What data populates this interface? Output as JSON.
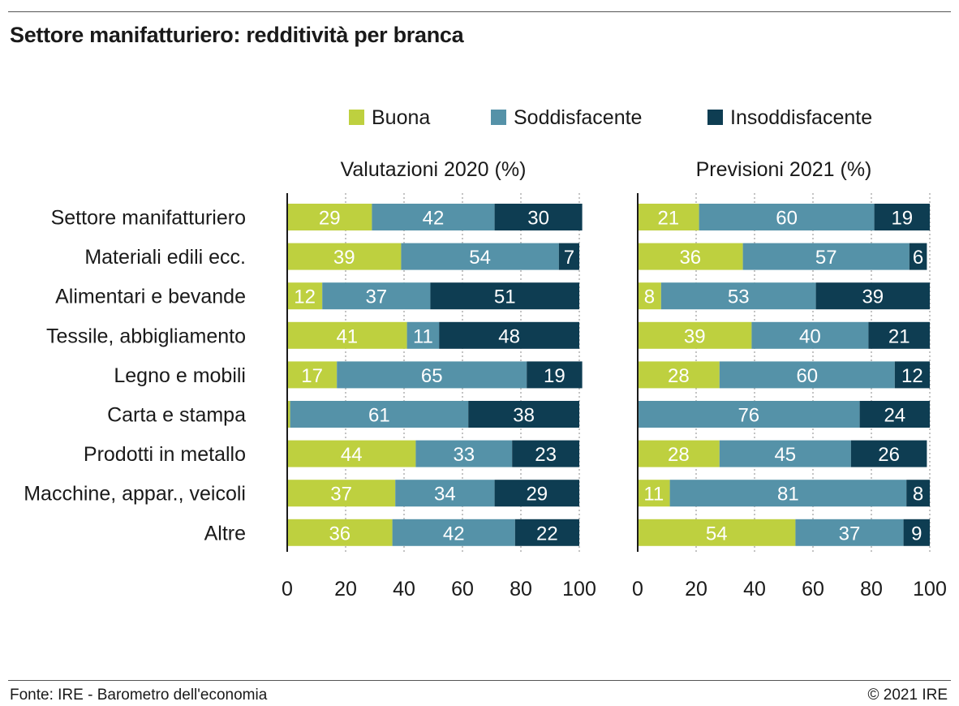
{
  "title": "Settore manifatturiero: redditività per branca",
  "source": "Fonte: IRE - Barometro dell'economia",
  "copyright": "© 2021 IRE",
  "chart_data": {
    "type": "bar",
    "orientation": "horizontal",
    "stacked": true,
    "legend_placement": "top",
    "grid": true,
    "colors": {
      "Buona": "#bed03f",
      "Soddisfacente": "#5592a8",
      "Insoddisfacente": "#0e3d52"
    },
    "legend": [
      "Buona",
      "Soddisfacente",
      "Insoddisfacente"
    ],
    "categories": [
      "Settore manifatturiero",
      "Materiali edili ecc.",
      "Alimentari e bevande",
      "Tessile, abbigliamento",
      "Legno e mobili",
      "Carta e stampa",
      "Prodotti in metallo",
      "Macchine, appar., veicoli",
      "Altre"
    ],
    "xlim": [
      0,
      100
    ],
    "xticks": [
      0,
      20,
      40,
      60,
      80,
      100
    ],
    "panels": [
      {
        "title": "Valutazioni 2020 (%)",
        "series": [
          {
            "name": "Buona",
            "values": [
              29,
              39,
              12,
              41,
              17,
              1,
              44,
              37,
              36
            ],
            "labels": [
              "29",
              "39",
              "12",
              "41",
              "17",
              "",
              "44",
              "37",
              "36"
            ]
          },
          {
            "name": "Soddisfacente",
            "values": [
              42,
              54,
              37,
              11,
              65,
              61,
              33,
              34,
              42
            ],
            "labels": [
              "42",
              "54",
              "37",
              "11",
              "65",
              "61",
              "33",
              "34",
              "42"
            ]
          },
          {
            "name": "Insoddisfacente",
            "values": [
              30,
              7,
              51,
              48,
              19,
              38,
              23,
              29,
              22
            ],
            "labels": [
              "30",
              "7",
              "51",
              "48",
              "19",
              "38",
              "23",
              "29",
              "22"
            ]
          }
        ]
      },
      {
        "title": "Previsioni 2021 (%)",
        "series": [
          {
            "name": "Buona",
            "values": [
              21,
              36,
              8,
              39,
              28,
              0,
              28,
              11,
              54
            ],
            "labels": [
              "21",
              "36",
              "8",
              "39",
              "28",
              "",
              "28",
              "11",
              "54"
            ]
          },
          {
            "name": "Soddisfacente",
            "values": [
              60,
              57,
              53,
              40,
              60,
              76,
              45,
              81,
              37
            ],
            "labels": [
              "60",
              "57",
              "53",
              "40",
              "60",
              "76",
              "45",
              "81",
              "37"
            ]
          },
          {
            "name": "Insoddisfacente",
            "values": [
              19,
              6,
              39,
              21,
              12,
              24,
              26,
              8,
              9
            ],
            "labels": [
              "19",
              "6",
              "39",
              "21",
              "12",
              "24",
              "26",
              "8",
              "9"
            ]
          }
        ]
      }
    ]
  }
}
